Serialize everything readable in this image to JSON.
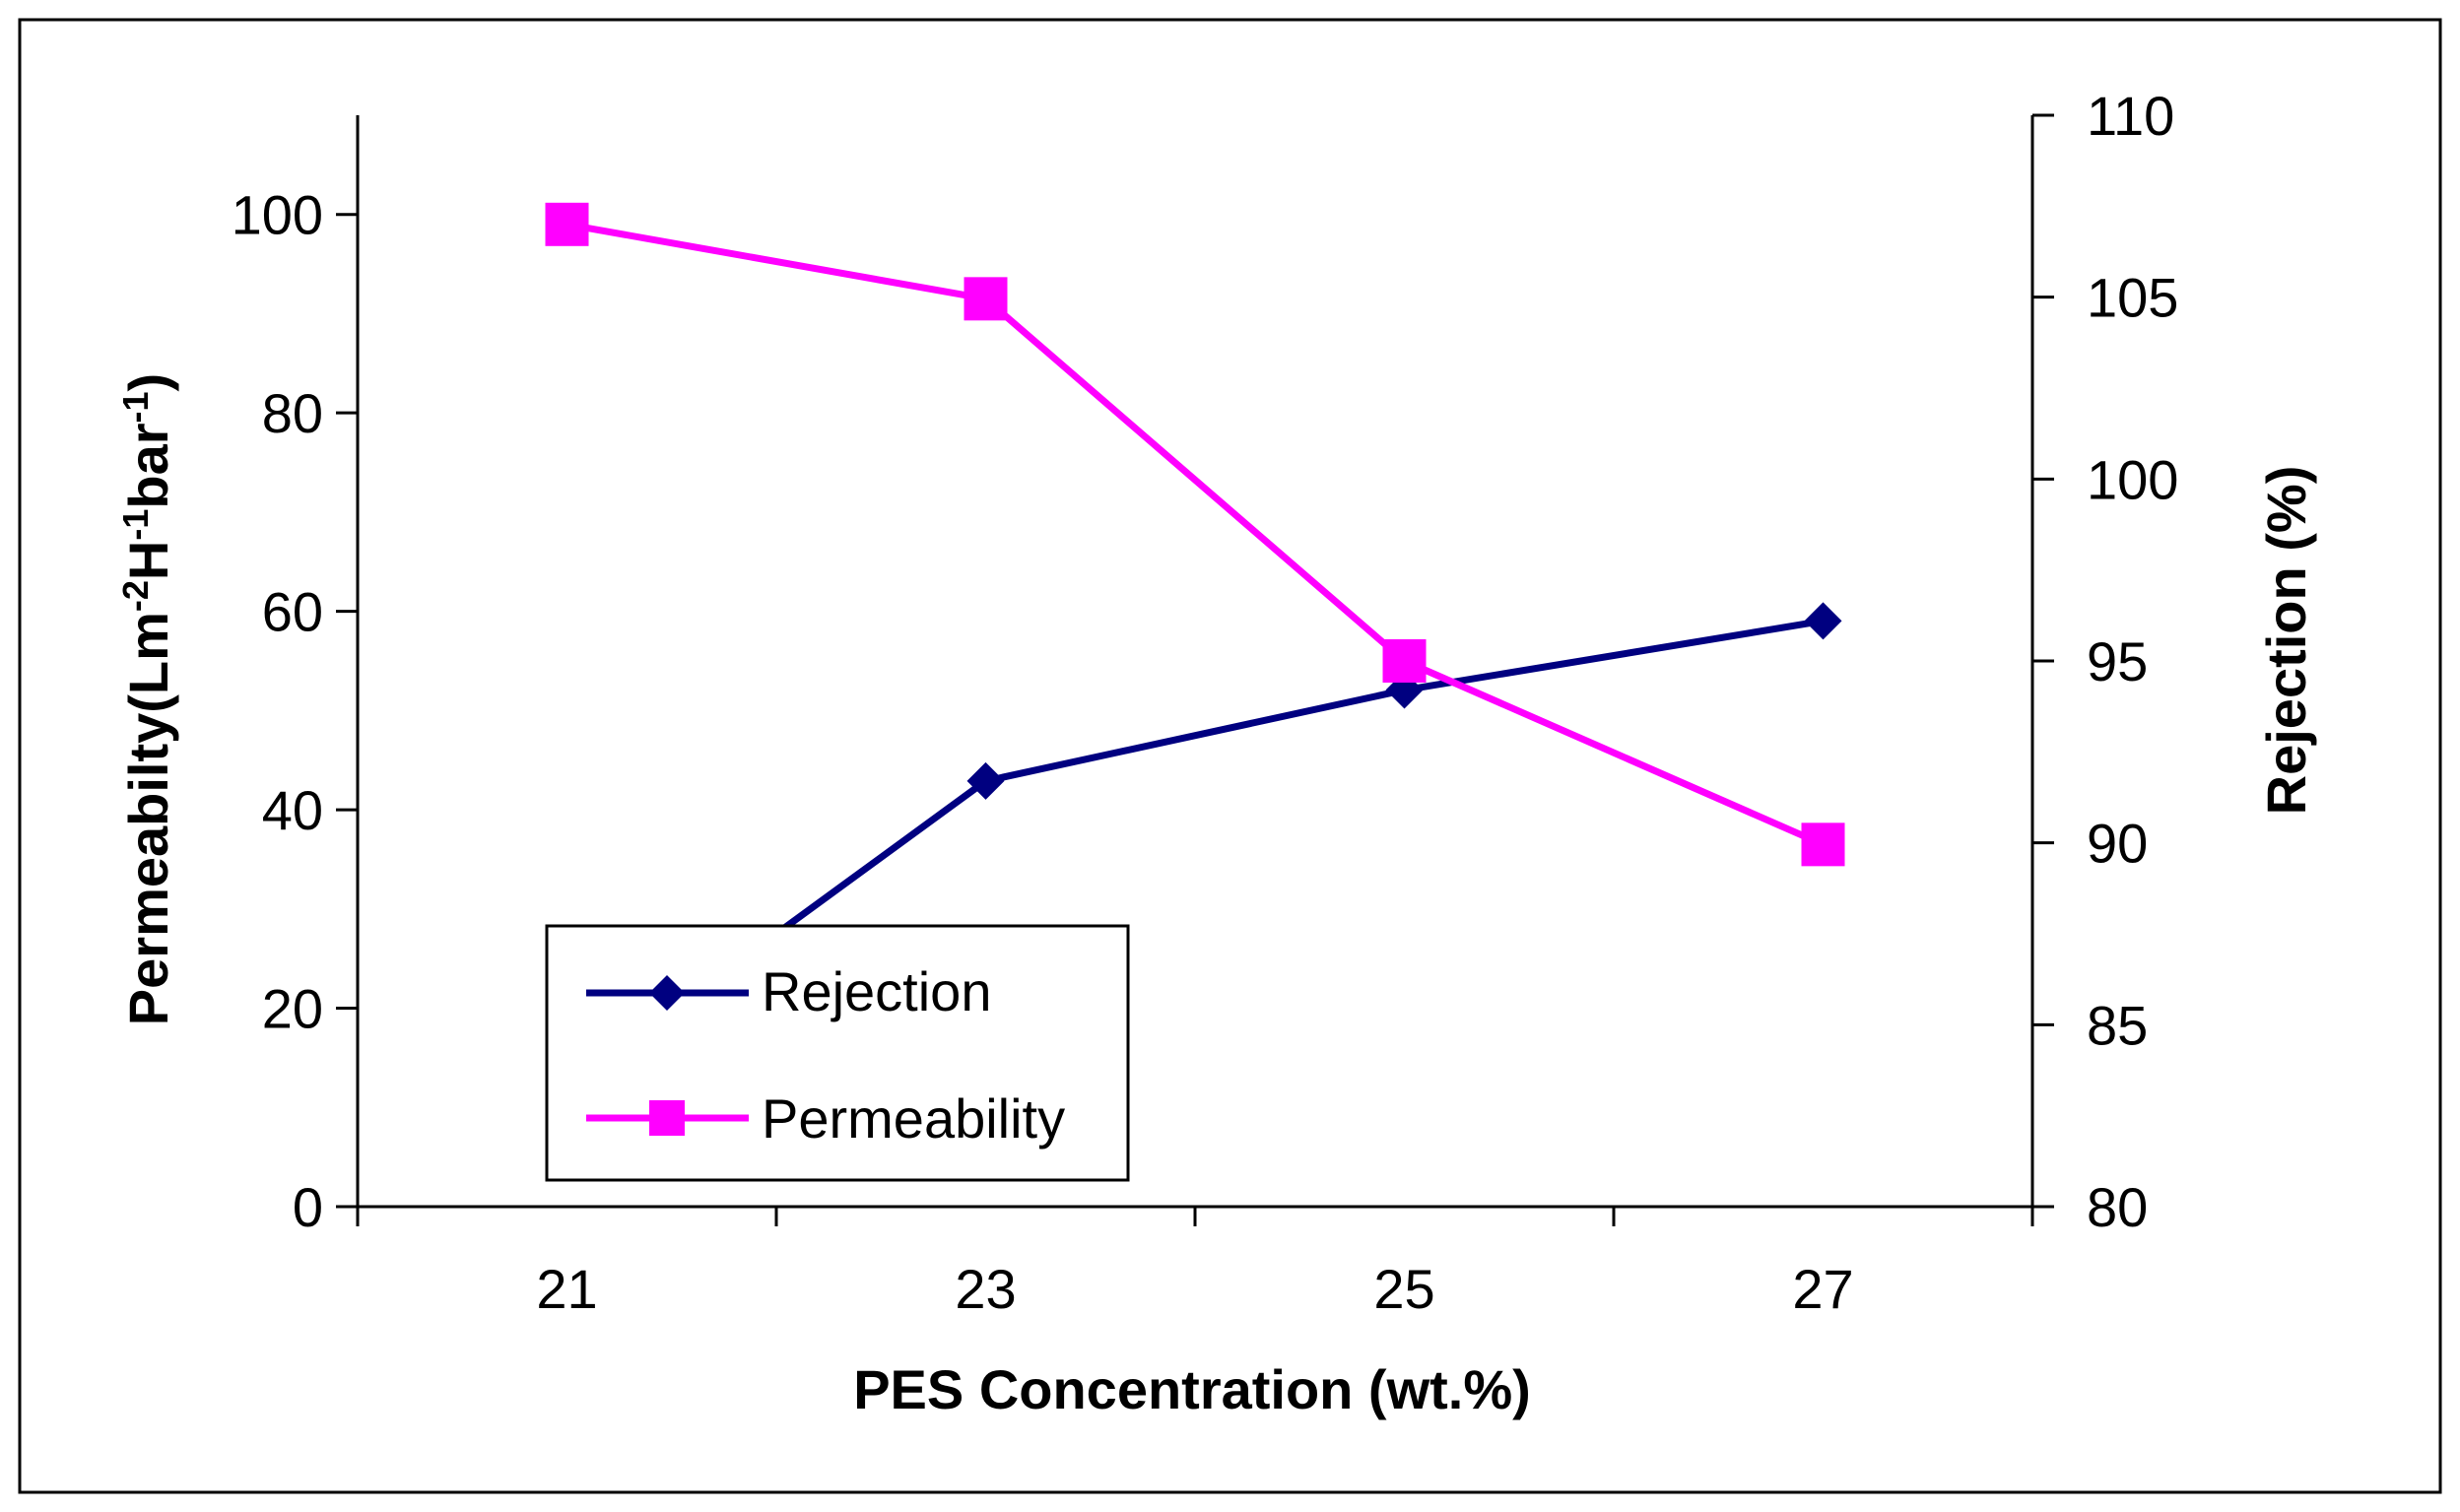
{
  "chart_data": {
    "type": "line",
    "xlabel": "PES Concentration (wt.%)",
    "ylabel_left": {
      "main": "Permeabilty(Lm",
      "sup1": "-2",
      "mid1": "H",
      "sup2": "-1",
      "mid2": "bar",
      "sup3": "-1",
      "end": ")"
    },
    "ylabel_right": "Rejection (%)",
    "categories": [
      "21",
      "23",
      "25",
      "27"
    ],
    "x": [
      21,
      23,
      25,
      27
    ],
    "xlim": [
      20,
      28
    ],
    "ylim_left": [
      0,
      110
    ],
    "ylim_right": [
      80,
      110
    ],
    "yticks_left": [
      0,
      20,
      40,
      60,
      80,
      100
    ],
    "yticks_right": [
      80,
      85,
      90,
      95,
      100,
      105,
      110
    ],
    "series": [
      {
        "name": "Rejection",
        "axis": "right",
        "color": "#000080",
        "marker": "diamond",
        "values": [
          83.3,
          91.7,
          94.2,
          96.1
        ]
      },
      {
        "name": "Permeability",
        "axis": "left",
        "color": "#FF00FF",
        "marker": "square",
        "values": [
          99,
          91.5,
          55,
          36.5
        ]
      }
    ],
    "legend_position": "bottom-left",
    "grid": false
  }
}
